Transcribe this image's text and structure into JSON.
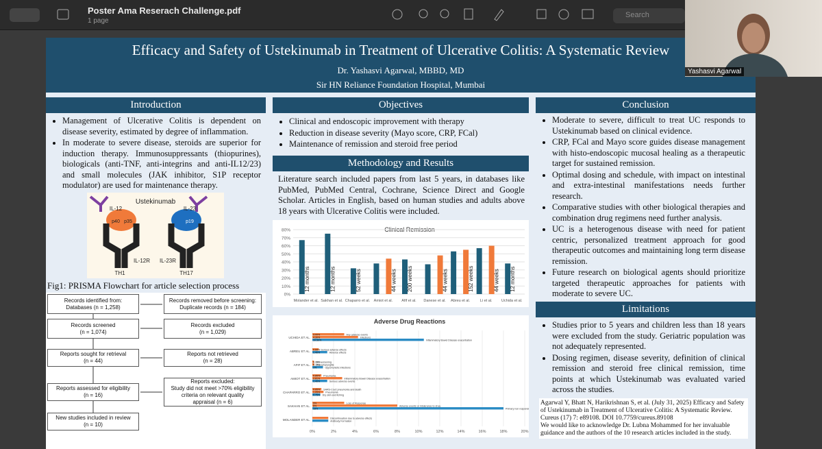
{
  "window": {
    "title": "Poster Ama Reserach Challenge.pdf",
    "subtitle": "1 page",
    "search": "Search"
  },
  "video": {
    "name": "Yashasvi Agarwal"
  },
  "poster": {
    "title": "Efficacy and Safety of Ustekinumab in Treatment of Ulcerative Colitis: A Systematic Review",
    "author": "Dr. Yashasvi Agarwal, MBBD, MD",
    "affiliation": "Sir HN Reliance Foundation Hospital, Mumbai",
    "introduction": {
      "heading": "Introduction",
      "bullets": [
        "Management of Ulcerative Colitis is dependent on disease severity, estimated by degree of inflammation.",
        "In moderate to severe disease, steroids are superior for induction therapy. Immunosuppressants (thiopurines), biologicals (anti-TNF, anti-integrins and anti-IL12/23) and small molecules (JAK inhibitor, S1P receptor modulator) are used for maintenance therapy."
      ]
    },
    "figure": {
      "drug": "Ustekinumab",
      "left_cytokine": "IL-12",
      "right_cytokine": "IL-23",
      "left_receptor": "IL-12R",
      "right_receptor": "IL-23R",
      "left_cell": "TH1",
      "right_cell": "TH17",
      "subunits": [
        "p40",
        "p35",
        "p19"
      ]
    },
    "figure_caption": "Fig1: PRISMA Flowchart for article selection process",
    "prisma": {
      "nodes": [
        "Records identified from:\nDatabases (n = 1,258)",
        "Records removed before screening:\nDuplicate records (n = 184)",
        "Records screened\n(n = 1,074)",
        "Records excluded\n(n = 1,029)",
        "Reports sought for retrieval\n(n = 44)",
        "Reports not retrieved\n(n = 28)",
        "Reports assessed for eligibility\n(n = 16)",
        "Reports excluded:\nStudy did not meet >70% eligibility\ncriteria on relevant quality\nappraisal (n = 6)",
        "New studies included in review\n(n = 10)"
      ]
    },
    "objectives": {
      "heading": "Objectives",
      "bullets": [
        "Clinical and endoscopic improvement with therapy",
        "Reduction in disease severity (Mayo score, CRP, FCal)",
        "Maintenance of remission and steroid free period"
      ]
    },
    "methodology": {
      "heading": "Methodology and Results",
      "text": "Literature search included papers from last 5 years, in databases like PubMed, PubMed Central, Cochrane, Science Direct and Google Scholar. Articles in English, based on human studies and adults above 18 years with Ulcerative Colitis were included."
    },
    "remission_chart": {
      "type": "bar",
      "title": "Clinical Remission",
      "categories": [
        "Molander et al.",
        "Sakhan et al.",
        "Chaparro et al.",
        "Amiot et al.",
        "Afif et al.",
        "Danese et al.",
        "Abreu et al.",
        "Li et al.",
        "Uchida et al."
      ],
      "series": [
        {
          "color": "#1f5f7a",
          "values": [
            67,
            75,
            32,
            38,
            43,
            37,
            53,
            57,
            38
          ],
          "bar_labels": [
            "12 months",
            "12 months",
            "52 weeks",
            null,
            "200 weeks",
            null,
            null,
            null,
            "12 months"
          ]
        },
        {
          "color": "#f07a3a",
          "values": [
            null,
            null,
            null,
            44,
            null,
            48,
            55,
            60,
            null
          ],
          "bar_labels": [
            null,
            null,
            null,
            "44 weeks",
            null,
            "44 weeks",
            "152 weeks",
            "44 weeks",
            null
          ]
        }
      ],
      "ylim": [
        0,
        80
      ],
      "yticks": [
        {
          "value": 0,
          "label": "0%"
        },
        {
          "value": 10,
          "label": "10%"
        },
        {
          "value": 20,
          "label": "20%"
        },
        {
          "value": 30,
          "label": "30%"
        },
        {
          "value": 40,
          "label": "40%"
        },
        {
          "value": 50,
          "label": "50%"
        },
        {
          "value": 60,
          "label": "60%"
        },
        {
          "value": 70,
          "label": "70%"
        },
        {
          "value": 80,
          "label": "80%"
        }
      ],
      "grid": true
    },
    "adverse_chart": {
      "type": "hbar",
      "title": "Adverse Drug Reactions",
      "groups": [
        {
          "name": "UCHIDA ET AL.",
          "values": [
            3.0,
            4.3,
            10.5
          ],
          "value_labels": [
            "3.00%",
            "4.30%",
            "10.50%"
          ],
          "texts": [
            "Any adverse events",
            "Infections",
            "Inflammatory Bowel Disease exacerbation"
          ],
          "colors": [
            "#f07a3a",
            "#f07a3a",
            "#2b8cc4"
          ]
        },
        {
          "name": "ABREU ET AL.",
          "values": [
            0.6,
            1.4
          ],
          "value_labels": [
            "0.60%",
            "1.40%"
          ],
          "texts": [
            "Serious adverse effects",
            "Adverse effects"
          ],
          "colors": [
            "#f07a3a",
            "#2b8cc4"
          ]
        },
        {
          "name": "AFIF ET AL.",
          "values": [
            0.15,
            0.17,
            1
          ],
          "value_labels": [
            "0.15%",
            "0.17%",
            "1%"
          ],
          "texts": [
            "UC worsening",
            "Nasopharyngitis",
            "Opportunistic infections"
          ],
          "colors": [
            "#f07a3a",
            "#f07a3a",
            "#2b8cc4"
          ]
        },
        {
          "name": "AMIOT ET AL.",
          "values": [
            0.85,
            2.81,
            1.4
          ],
          "value_labels": [
            "0.85%",
            "2.81%",
            "1.40%"
          ],
          "texts": [
            "Pneumonia",
            "Inflammatory Bowel Disease exacerbation",
            "Serious adverse events"
          ],
          "colors": [
            "#f07a3a",
            "#f07a3a",
            "#2b8cc4"
          ]
        },
        {
          "name": "CHAPARRO ET AL.",
          "values": [
            0.85,
            1.05,
            0.75
          ],
          "value_labels": [
            "0.85%",
            "1.05%",
            "0.75%"
          ],
          "texts": [
            "SARS-Cov2 pneumonia and death",
            "Pneumonia",
            "Dry skin and itching"
          ],
          "colors": [
            "#f07a3a",
            "#f07a3a",
            "#2b8cc4"
          ]
        },
        {
          "name": "SAKHAN ET AL.",
          "values": [
            3,
            8,
            18
          ],
          "value_labels": [
            "3%",
            "8%",
            "18%"
          ],
          "texts": [
            "Loss of Response",
            "Adverse events or intolerance to drug",
            "Primary non responders"
          ],
          "colors": [
            "#f07a3a",
            "#f07a3a",
            "#2b8cc4"
          ]
        },
        {
          "name": "MOLANDER ET AL.",
          "values": [
            1.5,
            1.5
          ],
          "texts": [
            "Discontinuation due to adverse effects",
            "Antibody Formation"
          ],
          "colors": [
            "#f07a3a",
            "#2b8cc4"
          ]
        }
      ],
      "xlim": [
        0,
        20
      ],
      "xticks": [
        {
          "value": 0,
          "label": "0%"
        },
        {
          "value": 2,
          "label": "2%"
        },
        {
          "value": 4,
          "label": "4%"
        },
        {
          "value": 6,
          "label": "6%"
        },
        {
          "value": 8,
          "label": "8%"
        },
        {
          "value": 10,
          "label": "10%"
        },
        {
          "value": 12,
          "label": "12%"
        },
        {
          "value": 14,
          "label": "14%"
        },
        {
          "value": 16,
          "label": "16%"
        },
        {
          "value": 18,
          "label": "18%"
        },
        {
          "value": 20,
          "label": "20%"
        }
      ]
    },
    "conclusion": {
      "heading": "Conclusion",
      "bullets": [
        "Moderate to severe, difficult to treat UC responds to Ustekinumab based on clinical evidence.",
        "CRP, FCal and Mayo score guides disease management with histo-endoscopic mucosal healing as a therapeutic target for sustained remission.",
        "Optimal dosing and schedule, with impact on intestinal and extra-intestinal manifestations needs further research.",
        "Comparative studies with other biological therapies and combination drug regimens need further analysis.",
        "UC is a heterogenous disease with need for patient centric, personalized treatment approach for good therapeutic outcomes and maintaining long term disease remission.",
        "Future research on biological agents should prioritize targeted therapeutic approaches for patients with moderate to severe UC."
      ]
    },
    "limitations": {
      "heading": "Limitations",
      "bullets": [
        "Studies prior to 5 years and children less than 18 years were excluded from the study. Geriatric population was not adequately represented.",
        "Dosing regimen, disease severity, definition of clinical remission and steroid free clinical remission, time points at which Ustekinumab was evaluated varied across the studies."
      ]
    },
    "reference": "Agarwal Y, Bhatt N, Harikrishnan S, et al. (July 31, 2025) Efficacy and Safety of Ustekinumab in Treatment of Ulcerative Colitis: A Systematic Review. Cureus (17) 7: e89108. DOI 10.7759/cureus.89108",
    "acknowledgement": "We would like to acknowledge Dr. Lubna Mohammed for her invaluable guidance and the authors of the 10 research articles included in the study."
  }
}
